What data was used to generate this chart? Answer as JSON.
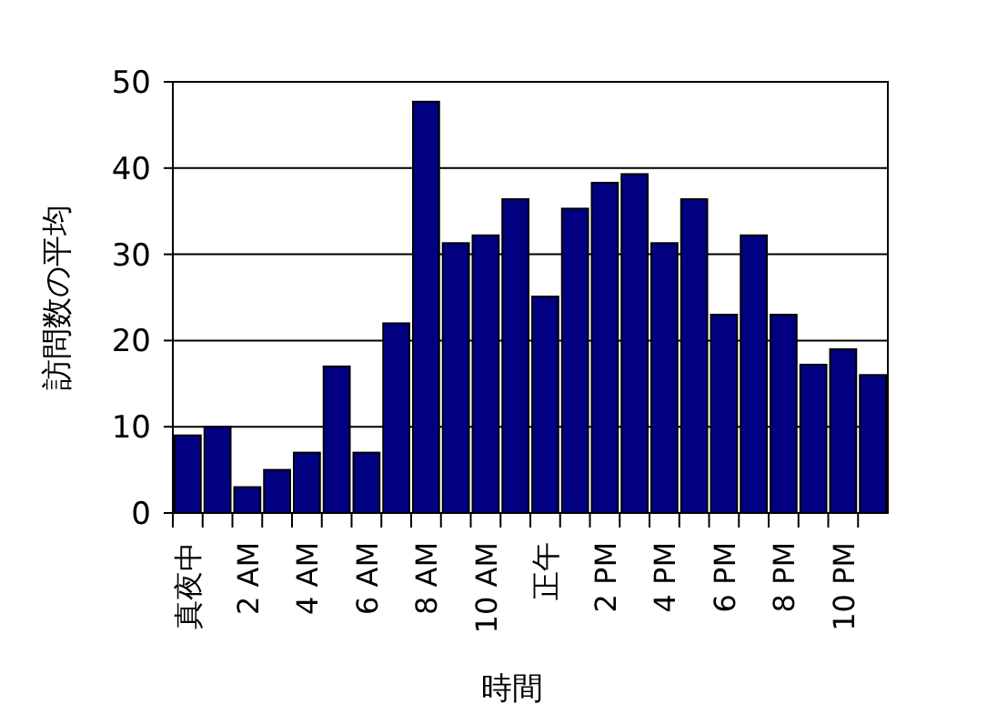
{
  "chart_data": {
    "type": "bar",
    "xlabel": "時間",
    "ylabel": "訪問数の平均",
    "categories": [
      "真夜中",
      null,
      "2 AM",
      null,
      "4 AM",
      null,
      "6 AM",
      null,
      "8 AM",
      null,
      "10 AM",
      null,
      "正午",
      null,
      "2 PM",
      null,
      "4 PM",
      null,
      "6 PM",
      null,
      "8 PM",
      null,
      "10 PM",
      null
    ],
    "values": [
      9,
      10,
      3,
      5,
      7,
      17,
      7,
      22,
      47.7,
      31.3,
      32.2,
      36.4,
      25.1,
      35.3,
      38.3,
      39.3,
      31.3,
      36.4,
      23,
      32.2,
      23,
      17.2,
      19,
      16
    ],
    "color": "#000080",
    "ylim": [
      0,
      50
    ],
    "yticks": [
      0,
      10,
      20,
      30,
      40,
      50
    ],
    "grid": "y"
  }
}
